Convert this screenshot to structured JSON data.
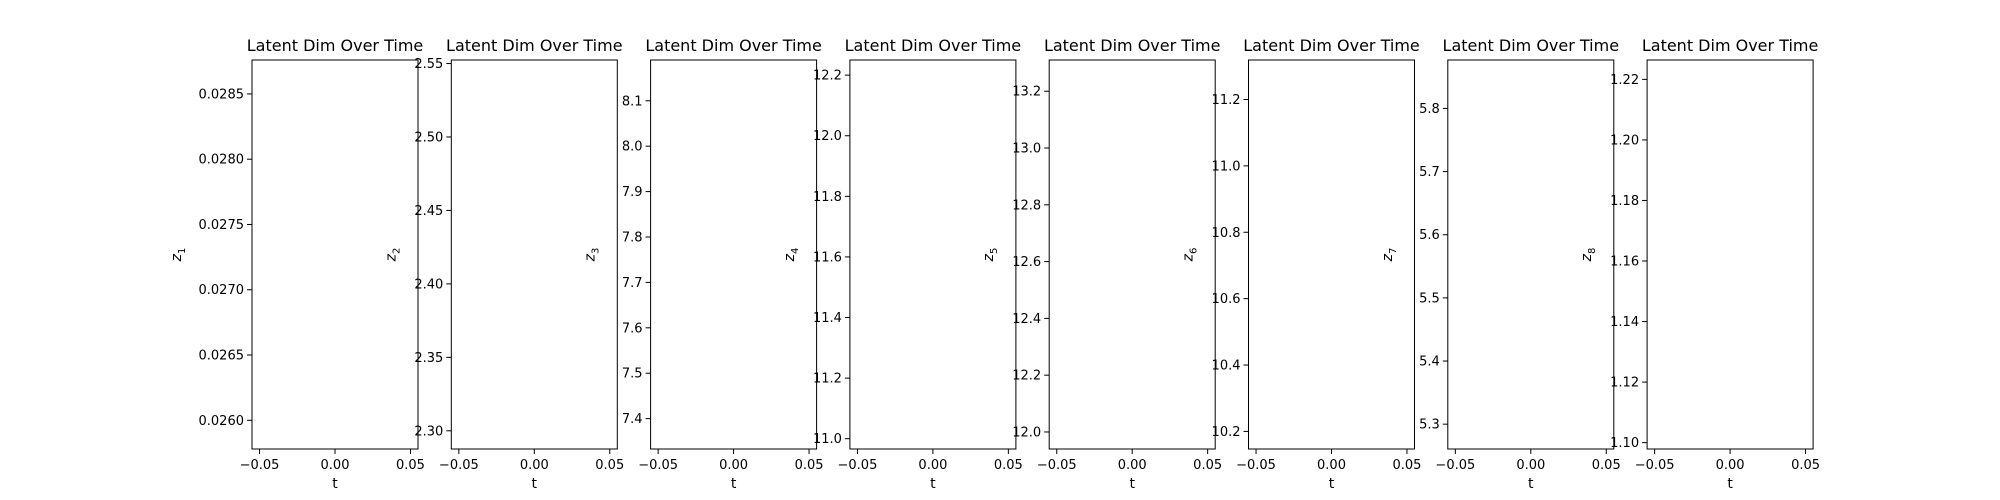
{
  "chart_data": [
    {
      "type": "line",
      "title": "Latent Dim Over Time",
      "xlabel": "t",
      "ylabel_var": "z",
      "ylabel_sub": "1",
      "xlim": [
        -0.055,
        0.055
      ],
      "xticks": [
        -0.05,
        0.0,
        0.05
      ],
      "xtick_labels": [
        "−0.05",
        "0.00",
        "0.05"
      ],
      "ylim": [
        0.02578,
        0.02876
      ],
      "yticks": [
        0.026,
        0.0265,
        0.027,
        0.0275,
        0.028,
        0.0285
      ],
      "ytick_labels": [
        "0.0260",
        "0.0265",
        "0.0270",
        "0.0275",
        "0.0280",
        "0.0285"
      ],
      "series": [],
      "grid": false
    },
    {
      "type": "line",
      "title": "Latent Dim Over Time",
      "xlabel": "t",
      "ylabel_var": "z",
      "ylabel_sub": "2",
      "xlim": [
        -0.055,
        0.055
      ],
      "xticks": [
        -0.05,
        0.0,
        0.05
      ],
      "xtick_labels": [
        "−0.05",
        "0.00",
        "0.05"
      ],
      "ylim": [
        2.2876,
        2.5524
      ],
      "yticks": [
        2.3,
        2.35,
        2.4,
        2.45,
        2.5,
        2.55
      ],
      "ytick_labels": [
        "2.30",
        "2.35",
        "2.40",
        "2.45",
        "2.50",
        "2.55"
      ],
      "series": [],
      "grid": false
    },
    {
      "type": "line",
      "title": "Latent Dim Over Time",
      "xlabel": "t",
      "ylabel_var": "z",
      "ylabel_sub": "3",
      "xlim": [
        -0.055,
        0.055
      ],
      "xticks": [
        -0.05,
        0.0,
        0.05
      ],
      "xtick_labels": [
        "−0.05",
        "0.00",
        "0.05"
      ],
      "ylim": [
        7.3331,
        8.1898
      ],
      "yticks": [
        7.4,
        7.5,
        7.6,
        7.7,
        7.8,
        7.9,
        8.0,
        8.1
      ],
      "ytick_labels": [
        "7.4",
        "7.5",
        "7.6",
        "7.7",
        "7.8",
        "7.9",
        "8.0",
        "8.1"
      ],
      "series": [],
      "grid": false
    },
    {
      "type": "line",
      "title": "Latent Dim Over Time",
      "xlabel": "t",
      "ylabel_var": "z",
      "ylabel_sub": "4",
      "xlim": [
        -0.055,
        0.055
      ],
      "xticks": [
        -0.05,
        0.0,
        0.05
      ],
      "xtick_labels": [
        "−0.05",
        "0.00",
        "0.05"
      ],
      "ylim": [
        10.966,
        12.25
      ],
      "yticks": [
        11.0,
        11.2,
        11.4,
        11.6,
        11.8,
        12.0,
        12.2
      ],
      "ytick_labels": [
        "11.0",
        "11.2",
        "11.4",
        "11.6",
        "11.8",
        "12.0",
        "12.2"
      ],
      "series": [],
      "grid": false
    },
    {
      "type": "line",
      "title": "Latent Dim Over Time",
      "xlabel": "t",
      "ylabel_var": "z",
      "ylabel_sub": "5",
      "xlim": [
        -0.055,
        0.055
      ],
      "xticks": [
        -0.05,
        0.0,
        0.05
      ],
      "xtick_labels": [
        "−0.05",
        "0.00",
        "0.05"
      ],
      "ylim": [
        11.94,
        13.31
      ],
      "yticks": [
        12.0,
        12.2,
        12.4,
        12.6,
        12.8,
        13.0,
        13.2
      ],
      "ytick_labels": [
        "12.0",
        "12.2",
        "12.4",
        "12.6",
        "12.8",
        "13.0",
        "13.2"
      ],
      "series": [],
      "grid": false
    },
    {
      "type": "line",
      "title": "Latent Dim Over Time",
      "xlabel": "t",
      "ylabel_var": "z",
      "ylabel_sub": "6",
      "xlim": [
        -0.055,
        0.055
      ],
      "xticks": [
        -0.05,
        0.0,
        0.05
      ],
      "xtick_labels": [
        "−0.05",
        "0.00",
        "0.05"
      ],
      "ylim": [
        10.147,
        11.319
      ],
      "yticks": [
        10.2,
        10.4,
        10.6,
        10.8,
        11.0,
        11.2
      ],
      "ytick_labels": [
        "10.2",
        "10.4",
        "10.6",
        "10.8",
        "11.0",
        "11.2"
      ],
      "series": [],
      "grid": false
    },
    {
      "type": "line",
      "title": "Latent Dim Over Time",
      "xlabel": "t",
      "ylabel_var": "z",
      "ylabel_sub": "7",
      "xlim": [
        -0.055,
        0.055
      ],
      "xticks": [
        -0.05,
        0.0,
        0.05
      ],
      "xtick_labels": [
        "−0.05",
        "0.00",
        "0.05"
      ],
      "ylim": [
        5.2607,
        5.8767
      ],
      "yticks": [
        5.3,
        5.4,
        5.5,
        5.6,
        5.7,
        5.8
      ],
      "ytick_labels": [
        "5.3",
        "5.4",
        "5.5",
        "5.6",
        "5.7",
        "5.8"
      ],
      "series": [],
      "grid": false
    },
    {
      "type": "line",
      "title": "Latent Dim Over Time",
      "xlabel": "t",
      "ylabel_var": "z",
      "ylabel_sub": "8",
      "xlim": [
        -0.055,
        0.055
      ],
      "xticks": [
        -0.05,
        0.0,
        0.05
      ],
      "xtick_labels": [
        "−0.05",
        "0.00",
        "0.05"
      ],
      "ylim": [
        1.0979,
        1.2264
      ],
      "yticks": [
        1.1,
        1.12,
        1.14,
        1.16,
        1.18,
        1.2,
        1.22
      ],
      "ytick_labels": [
        "1.10",
        "1.12",
        "1.14",
        "1.16",
        "1.18",
        "1.20",
        "1.22"
      ],
      "series": [],
      "grid": false
    }
  ]
}
